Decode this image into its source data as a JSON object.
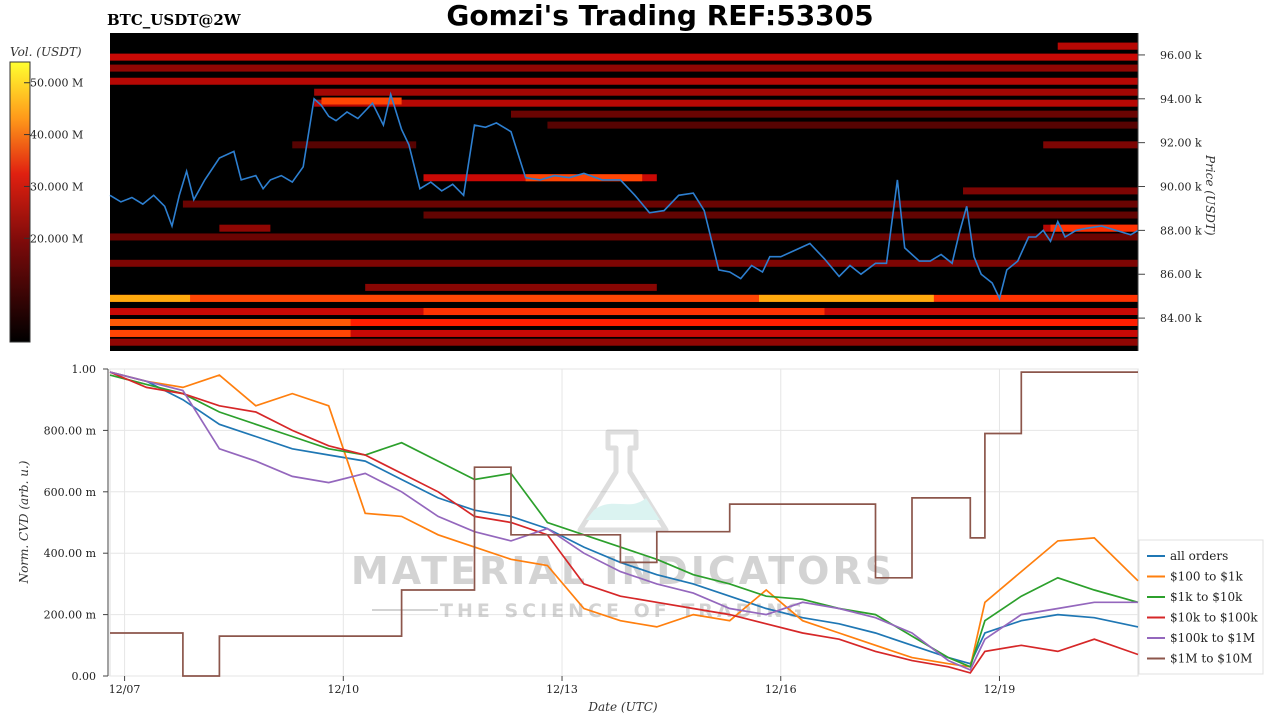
{
  "header": {
    "title": "Gomzi's Trading REF:53305",
    "pair": "BTC_USDT@2W"
  },
  "watermark": {
    "brand": "MATERIAL INDICATORS",
    "tagline": "THE SCIENCE OF TRADING"
  },
  "colors": {
    "price_line": "#2d7fd0",
    "heatmap_low": "#000000",
    "heatmap_mid": "#d01010",
    "heatmap_high": "#ffff20",
    "grid": "#e6e6e6"
  },
  "chart_data": [
    {
      "type": "heatmap",
      "colorbar": {
        "title": "Vol. (USDT)",
        "ticks": [
          "50.000 M",
          "40.000 M",
          "30.000 M",
          "20.000 M"
        ],
        "tick_values": [
          50,
          40,
          30,
          20
        ],
        "range_millions": [
          0,
          54
        ]
      },
      "ylabel": "Price (USDT)",
      "yticks": [
        "96.00 k",
        "94.00 k",
        "92.00 k",
        "90.00 k",
        "88.00 k",
        "86.00 k",
        "84.00 k"
      ],
      "ytick_values": [
        96000,
        94000,
        92000,
        90000,
        88000,
        86000,
        84000
      ],
      "ylim": [
        82500,
        97000
      ],
      "xlim": [
        0,
        14.1
      ],
      "bands": [
        {
          "price": 96400,
          "start": 13.0,
          "end": 14.1,
          "level": 0.25
        },
        {
          "price": 95900,
          "start": 0,
          "end": 14.1,
          "level": 0.45
        },
        {
          "price": 95400,
          "start": 0,
          "end": 14.1,
          "level": 0.3
        },
        {
          "price": 94800,
          "start": 0,
          "end": 14.1,
          "level": 0.4
        },
        {
          "price": 94300,
          "start": 2.8,
          "end": 14.1,
          "level": 0.35
        },
        {
          "price": 93800,
          "start": 2.8,
          "end": 14.1,
          "level": 0.4
        },
        {
          "price": 93300,
          "start": 5.5,
          "end": 14.1,
          "level": 0.2
        },
        {
          "price": 92800,
          "start": 6.0,
          "end": 14.1,
          "level": 0.15
        },
        {
          "price": 91900,
          "start": 2.5,
          "end": 4.2,
          "level": 0.15
        },
        {
          "price": 91900,
          "start": 12.8,
          "end": 14.1,
          "level": 0.25
        },
        {
          "price": 90400,
          "start": 4.3,
          "end": 7.5,
          "level": 0.45
        },
        {
          "price": 89800,
          "start": 11.7,
          "end": 14.1,
          "level": 0.25
        },
        {
          "price": 89200,
          "start": 1.0,
          "end": 14.1,
          "level": 0.2
        },
        {
          "price": 88700,
          "start": 4.3,
          "end": 14.1,
          "level": 0.18
        },
        {
          "price": 88100,
          "start": 1.5,
          "end": 2.2,
          "level": 0.3
        },
        {
          "price": 88100,
          "start": 12.8,
          "end": 14.1,
          "level": 0.4
        },
        {
          "price": 87700,
          "start": 0,
          "end": 14.1,
          "level": 0.2
        },
        {
          "price": 86500,
          "start": 0,
          "end": 14.1,
          "level": 0.25
        },
        {
          "price": 85400,
          "start": 3.5,
          "end": 7.5,
          "level": 0.28
        },
        {
          "price": 84900,
          "start": 0,
          "end": 14.1,
          "level": 0.55
        },
        {
          "price": 84300,
          "start": 0,
          "end": 14.1,
          "level": 0.45
        },
        {
          "price": 83800,
          "start": 0,
          "end": 14.1,
          "level": 0.5
        },
        {
          "price": 83300,
          "start": 0,
          "end": 14.1,
          "level": 0.45
        },
        {
          "price": 82900,
          "start": 0,
          "end": 14.1,
          "level": 0.3
        }
      ],
      "hot_segments": [
        {
          "price": 84900,
          "start": 0,
          "end": 1.1,
          "level": 0.85
        },
        {
          "price": 84900,
          "start": 8.9,
          "end": 11.3,
          "level": 0.85
        },
        {
          "price": 84900,
          "start": 1.1,
          "end": 8.9,
          "level": 0.6
        },
        {
          "price": 83800,
          "start": 0,
          "end": 3.3,
          "level": 0.65
        },
        {
          "price": 83300,
          "start": 0,
          "end": 3.3,
          "level": 0.6
        },
        {
          "price": 84300,
          "start": 4.3,
          "end": 9.8,
          "level": 0.55
        },
        {
          "price": 93900,
          "start": 2.9,
          "end": 4.0,
          "level": 0.6
        },
        {
          "price": 90400,
          "start": 5.7,
          "end": 7.3,
          "level": 0.6
        },
        {
          "price": 96400,
          "start": 13.0,
          "end": 14.1,
          "level": 0.4
        },
        {
          "price": 88100,
          "start": 12.9,
          "end": 14.1,
          "level": 0.55
        }
      ],
      "price_series": {
        "name": "BTC_USDT",
        "x": [
          0,
          0.15,
          0.3,
          0.45,
          0.6,
          0.75,
          0.85,
          0.95,
          1.05,
          1.15,
          1.3,
          1.5,
          1.7,
          1.8,
          2.0,
          2.1,
          2.2,
          2.35,
          2.5,
          2.65,
          2.8,
          2.9,
          3.0,
          3.1,
          3.25,
          3.4,
          3.6,
          3.75,
          3.85,
          4.0,
          4.1,
          4.25,
          4.4,
          4.55,
          4.7,
          4.85,
          5.0,
          5.15,
          5.3,
          5.5,
          5.7,
          5.9,
          6.1,
          6.3,
          6.5,
          6.75,
          7.0,
          7.2,
          7.4,
          7.6,
          7.8,
          8.0,
          8.15,
          8.35,
          8.5,
          8.65,
          8.8,
          8.95,
          9.05,
          9.2,
          9.4,
          9.6,
          9.8,
          10.0,
          10.15,
          10.3,
          10.5,
          10.65,
          10.8,
          10.9,
          11.0,
          11.1,
          11.25,
          11.4,
          11.55,
          11.65,
          11.75,
          11.85,
          11.95,
          12.1,
          12.2,
          12.3,
          12.45,
          12.6,
          12.7,
          12.8,
          12.9,
          13.0,
          13.1,
          13.25,
          13.4,
          13.6,
          13.8,
          14.0,
          14.1
        ],
        "y": [
          89600,
          89300,
          89500,
          89200,
          89600,
          89100,
          88200,
          89600,
          90700,
          89400,
          90300,
          91300,
          91600,
          90300,
          90500,
          89900,
          90300,
          90500,
          90200,
          90900,
          94000,
          93700,
          93200,
          93000,
          93400,
          93100,
          93800,
          92800,
          94200,
          92600,
          91900,
          89900,
          90200,
          89800,
          90100,
          89600,
          92800,
          92700,
          92900,
          92500,
          90400,
          90300,
          90500,
          90400,
          90600,
          90300,
          90300,
          89600,
          88800,
          88900,
          89600,
          89700,
          88900,
          86200,
          86100,
          85800,
          86400,
          86100,
          86800,
          86800,
          87100,
          87400,
          86700,
          85900,
          86400,
          86000,
          86500,
          86500,
          90300,
          87200,
          86900,
          86600,
          86600,
          86900,
          86500,
          87900,
          89100,
          86800,
          86000,
          85600,
          84900,
          86200,
          86600,
          87700,
          87700,
          88000,
          87500,
          88400,
          87700,
          88000,
          88100,
          88200,
          88000,
          87800,
          88000
        ]
      }
    },
    {
      "type": "line",
      "ylabel": "Norm. CVD (arb. u.)",
      "xlabel": "Date (UTC)",
      "ylim": [
        0,
        1
      ],
      "yticks": [
        "1.00",
        "800.00 m",
        "600.00 m",
        "400.00 m",
        "200.00 m",
        "0.00"
      ],
      "ytick_values": [
        1.0,
        0.8,
        0.6,
        0.4,
        0.2,
        0.0
      ],
      "xlim": [
        0,
        14.1
      ],
      "xticks": [
        "12/07",
        "12/10",
        "12/13",
        "12/16",
        "12/19"
      ],
      "xtick_values": [
        0.2,
        3.2,
        6.2,
        9.2,
        12.2
      ],
      "x": [
        0,
        0.5,
        1.0,
        1.5,
        2.0,
        2.5,
        3.0,
        3.5,
        4.0,
        4.5,
        5.0,
        5.5,
        6.0,
        6.5,
        7.0,
        7.5,
        8.0,
        8.5,
        9.0,
        9.5,
        10.0,
        10.5,
        11.0,
        11.5,
        11.8,
        12.0,
        12.5,
        13.0,
        13.5,
        14.1
      ],
      "series": [
        {
          "name": "all orders",
          "color": "#1f77b4",
          "values": [
            0.99,
            0.96,
            0.9,
            0.82,
            0.78,
            0.74,
            0.72,
            0.7,
            0.64,
            0.58,
            0.54,
            0.52,
            0.48,
            0.42,
            0.37,
            0.33,
            0.3,
            0.26,
            0.22,
            0.19,
            0.17,
            0.14,
            0.1,
            0.06,
            0.04,
            0.14,
            0.18,
            0.2,
            0.19,
            0.16
          ]
        },
        {
          "name": "$100 to $1k",
          "color": "#ff7f0e",
          "values": [
            0.99,
            0.96,
            0.94,
            0.98,
            0.88,
            0.92,
            0.88,
            0.53,
            0.52,
            0.46,
            0.42,
            0.38,
            0.36,
            0.22,
            0.18,
            0.16,
            0.2,
            0.18,
            0.28,
            0.18,
            0.14,
            0.1,
            0.06,
            0.04,
            0.03,
            0.24,
            0.34,
            0.44,
            0.45,
            0.31
          ]
        },
        {
          "name": "$1k to $10k",
          "color": "#2ca02c",
          "values": [
            0.98,
            0.95,
            0.92,
            0.86,
            0.82,
            0.78,
            0.74,
            0.72,
            0.76,
            0.7,
            0.64,
            0.66,
            0.5,
            0.46,
            0.42,
            0.38,
            0.33,
            0.3,
            0.26,
            0.25,
            0.22,
            0.2,
            0.13,
            0.06,
            0.03,
            0.18,
            0.26,
            0.32,
            0.28,
            0.24
          ]
        },
        {
          "name": "$10k to $100k",
          "color": "#d62728",
          "values": [
            0.99,
            0.94,
            0.92,
            0.88,
            0.86,
            0.8,
            0.75,
            0.72,
            0.66,
            0.6,
            0.52,
            0.5,
            0.46,
            0.3,
            0.26,
            0.24,
            0.22,
            0.2,
            0.17,
            0.14,
            0.12,
            0.08,
            0.05,
            0.03,
            0.01,
            0.08,
            0.1,
            0.08,
            0.12,
            0.07
          ]
        },
        {
          "name": "$100k to $1M",
          "color": "#9467bd",
          "values": [
            0.99,
            0.96,
            0.93,
            0.74,
            0.7,
            0.65,
            0.63,
            0.66,
            0.6,
            0.52,
            0.47,
            0.44,
            0.48,
            0.4,
            0.34,
            0.3,
            0.27,
            0.22,
            0.2,
            0.24,
            0.22,
            0.19,
            0.14,
            0.05,
            0.02,
            0.12,
            0.2,
            0.22,
            0.24,
            0.24
          ]
        },
        {
          "name": "$1M to $10M",
          "color": "#8c564b",
          "values": [
            0.14,
            0.14,
            0.0,
            0.13,
            0.13,
            0.13,
            0.13,
            0.13,
            0.28,
            0.28,
            0.68,
            0.46,
            0.46,
            0.46,
            0.37,
            0.47,
            0.47,
            0.56,
            0.56,
            0.56,
            0.56,
            0.32,
            0.58,
            0.58,
            0.45,
            0.79,
            0.99,
            0.99,
            0.99,
            0.99
          ]
        }
      ]
    }
  ]
}
